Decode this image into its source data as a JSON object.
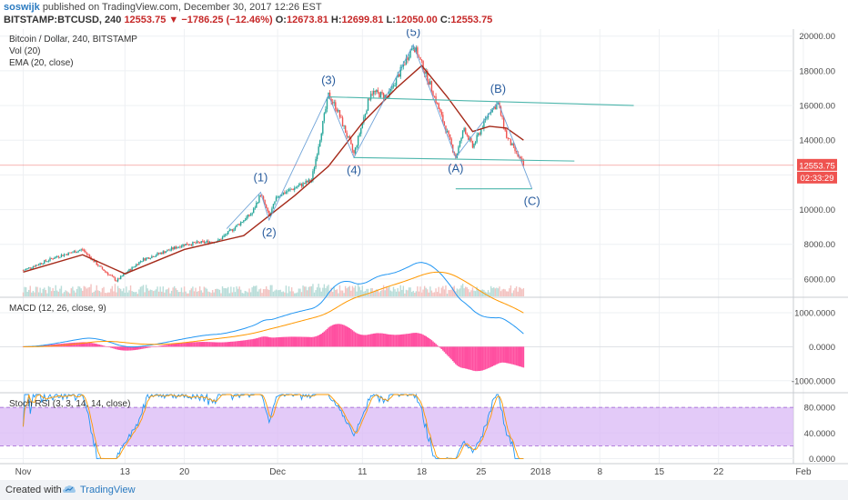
{
  "header": {
    "user": "soswijk",
    "published": "published on TradingView.com, December 30, 2017 12:26 EST",
    "symbol": "BITSTAMP:BTCUSD, 240",
    "last": "12553.75",
    "change": "−1786.25 (−12.46%)",
    "o_label": "O:",
    "o_value": "12673.81",
    "h_label": "H:",
    "h_value": "12699.81",
    "l_label": "L:",
    "l_value": "12050.00",
    "c_label": "C:",
    "c_value": "12553.75"
  },
  "footer": {
    "created": "Created with",
    "brand": "TradingView"
  },
  "colors": {
    "up": "#26a69a",
    "down": "#ef5350",
    "ema": "#a52a1a",
    "macd": "#2196f3",
    "signal": "#ff9800",
    "hist": "#ff4fa0",
    "stoch_k": "#2196f3",
    "stoch_d": "#ff9800",
    "rsi_band": "#d9b8f5",
    "annotation": "#2a5d9e",
    "trendline": "#4db6ac",
    "price_line": "#ef5350"
  },
  "chart_data": [
    {
      "type": "candlestick",
      "title": "Bitcoin / Dollar, 240, BITSTAMP",
      "legend": [
        "Vol (20)",
        "EMA (20, close)"
      ],
      "ylim": [
        5000,
        20300
      ],
      "yticks": [
        "6000.00",
        "8000.00",
        "10000.00",
        "12000.00",
        "14000.00",
        "16000.00",
        "18000.00",
        "20000.00"
      ],
      "xticks": [
        "Nov",
        "13",
        "20",
        "Dec",
        "11",
        "18",
        "25",
        "2018",
        "8",
        "15",
        "22",
        "Feb"
      ],
      "price_label": "12553.75",
      "countdown": "02:33:29",
      "close_path": [
        {
          "x": "Nov 1",
          "y": 6500
        },
        {
          "x": "Nov 5",
          "y": 7300
        },
        {
          "x": "Nov 8",
          "y": 7700
        },
        {
          "x": "Nov 10",
          "y": 6700
        },
        {
          "x": "Nov 12",
          "y": 5900
        },
        {
          "x": "Nov 15",
          "y": 7100
        },
        {
          "x": "Nov 20",
          "y": 8000
        },
        {
          "x": "Nov 24",
          "y": 8200
        },
        {
          "x": "Nov 28",
          "y": 9800
        },
        {
          "x": "Nov 29",
          "y": 10900
        },
        {
          "x": "Nov 30",
          "y": 9600
        },
        {
          "x": "Dec 1",
          "y": 10800
        },
        {
          "x": "Dec 5",
          "y": 11700
        },
        {
          "x": "Dec 7",
          "y": 16600
        },
        {
          "x": "Dec 8",
          "y": 15800
        },
        {
          "x": "Dec 10",
          "y": 13200
        },
        {
          "x": "Dec 12",
          "y": 16800
        },
        {
          "x": "Dec 14",
          "y": 16500
        },
        {
          "x": "Dec 17",
          "y": 19500
        },
        {
          "x": "Dec 19",
          "y": 17200
        },
        {
          "x": "Dec 22",
          "y": 13000
        },
        {
          "x": "Dec 23",
          "y": 14700
        },
        {
          "x": "Dec 24",
          "y": 13600
        },
        {
          "x": "Dec 26",
          "y": 15700
        },
        {
          "x": "Dec 27",
          "y": 16100
        },
        {
          "x": "Dec 28",
          "y": 14200
        },
        {
          "x": "Dec 30",
          "y": 12554
        }
      ],
      "ema_path": [
        {
          "x": "Nov 1",
          "y": 6400
        },
        {
          "x": "Nov 8",
          "y": 7400
        },
        {
          "x": "Nov 13",
          "y": 6300
        },
        {
          "x": "Nov 20",
          "y": 7700
        },
        {
          "x": "Nov 27",
          "y": 8500
        },
        {
          "x": "Dec 3",
          "y": 10800
        },
        {
          "x": "Dec 7",
          "y": 12500
        },
        {
          "x": "Dec 11",
          "y": 15000
        },
        {
          "x": "Dec 15",
          "y": 17000
        },
        {
          "x": "Dec 18",
          "y": 18300
        },
        {
          "x": "Dec 21",
          "y": 16500
        },
        {
          "x": "Dec 24",
          "y": 14500
        },
        {
          "x": "Dec 26",
          "y": 14800
        },
        {
          "x": "Dec 28",
          "y": 14700
        },
        {
          "x": "Dec 30",
          "y": 14000
        }
      ],
      "annotations": [
        {
          "label": "(1)",
          "x": "Nov 29",
          "y": 11000
        },
        {
          "label": "(2)",
          "x": "Nov 30",
          "y": 9400
        },
        {
          "label": "(3)",
          "x": "Dec 7",
          "y": 16600
        },
        {
          "label": "(4)",
          "x": "Dec 10",
          "y": 13000
        },
        {
          "label": "(5)",
          "x": "Dec 17",
          "y": 19500
        },
        {
          "label": "(A)",
          "x": "Dec 22",
          "y": 13000
        },
        {
          "label": "(B)",
          "x": "Dec 27",
          "y": 16200
        },
        {
          "label": "(C)",
          "x": "Dec 31",
          "y": 11200
        }
      ],
      "trendlines": [
        {
          "from": {
            "x": "Dec 7",
            "y": 16500
          },
          "to": {
            "x": "Jan 12",
            "y": 16000
          }
        },
        {
          "from": {
            "x": "Dec 10",
            "y": 13000
          },
          "to": {
            "x": "Jan 5",
            "y": 12800
          }
        },
        {
          "from": {
            "x": "Dec 22",
            "y": 11200
          },
          "to": {
            "x": "Dec 31",
            "y": 11200
          }
        }
      ]
    },
    {
      "type": "line",
      "title": "MACD (12, 26, close, 9)",
      "yticks": [
        "1000.0000",
        "0.0000",
        "-1000.0000"
      ],
      "ylim": [
        -1300,
        1400
      ]
    },
    {
      "type": "line",
      "title": "Stoch RSI (3, 3, 14, 14, close)",
      "yticks": [
        "80.0000",
        "40.0000",
        "0.0000"
      ],
      "ylim": [
        -5,
        100
      ]
    }
  ]
}
